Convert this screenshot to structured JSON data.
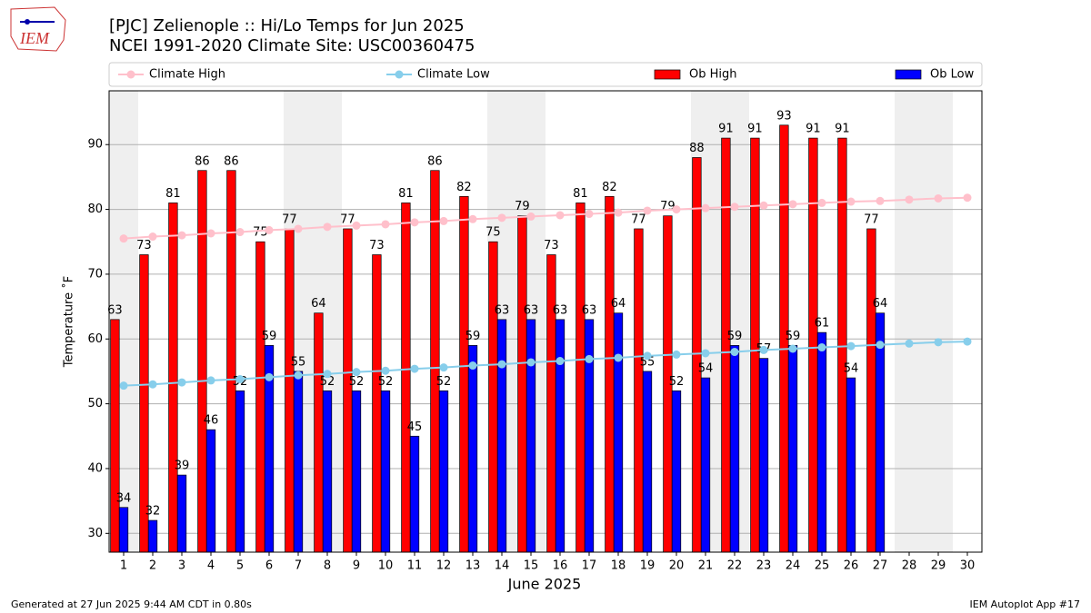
{
  "chart_data": {
    "type": "bar",
    "title": "[PJC] Zelienople :: Hi/Lo Temps for Jun 2025",
    "subtitle": "NCEI 1991-2020 Climate Site: USC00360475",
    "logo_text": "IEM",
    "x_label": "June 2025",
    "y_label": "Temperature ˚F",
    "footer_left": "Generated at 27 Jun 2025 9:44 AM CDT in 0.80s",
    "footer_right": "IEM Autoplot App #17",
    "x": [
      1,
      2,
      3,
      4,
      5,
      6,
      7,
      8,
      9,
      10,
      11,
      12,
      13,
      14,
      15,
      16,
      17,
      18,
      19,
      20,
      21,
      22,
      23,
      24,
      25,
      26,
      27,
      28,
      29,
      30
    ],
    "xlim": [
      0.5,
      30.5
    ],
    "xticks": [
      1,
      2,
      3,
      4,
      5,
      6,
      7,
      8,
      9,
      10,
      11,
      12,
      13,
      14,
      15,
      16,
      17,
      18,
      19,
      20,
      21,
      22,
      23,
      24,
      25,
      26,
      27,
      28,
      29,
      30
    ],
    "ylim": [
      27.1,
      98.3
    ],
    "yticks": [
      30,
      40,
      50,
      60,
      70,
      80,
      90
    ],
    "grid": true,
    "shaded_x": [
      1,
      7,
      8,
      14,
      15,
      21,
      22,
      28,
      29
    ],
    "series": [
      {
        "name": "Climate High",
        "kind": "line",
        "color": "#ffc0cb",
        "values": [
          75.5,
          75.8,
          76.0,
          76.3,
          76.5,
          76.8,
          77.0,
          77.3,
          77.5,
          77.7,
          78.0,
          78.2,
          78.5,
          78.7,
          78.9,
          79.1,
          79.3,
          79.5,
          79.8,
          80.0,
          80.2,
          80.4,
          80.6,
          80.8,
          81.0,
          81.2,
          81.3,
          81.5,
          81.7,
          81.8
        ]
      },
      {
        "name": "Climate Low",
        "kind": "line",
        "color": "#87ceeb",
        "values": [
          52.8,
          53.0,
          53.3,
          53.6,
          53.8,
          54.1,
          54.4,
          54.6,
          54.9,
          55.1,
          55.4,
          55.6,
          55.9,
          56.1,
          56.4,
          56.6,
          56.9,
          57.1,
          57.4,
          57.6,
          57.8,
          58.0,
          58.3,
          58.5,
          58.7,
          58.9,
          59.1,
          59.3,
          59.5,
          59.6
        ]
      },
      {
        "name": "Ob High",
        "kind": "bar",
        "color": "#ff0000",
        "values": [
          63,
          73,
          81,
          86,
          86,
          75,
          77,
          64,
          77,
          73,
          81,
          86,
          82,
          75,
          79,
          73,
          81,
          82,
          77,
          79,
          88,
          91,
          91,
          93,
          91,
          91,
          77,
          null,
          null,
          null
        ]
      },
      {
        "name": "Ob Low",
        "kind": "bar",
        "color": "#0000ff",
        "values": [
          34,
          32,
          39,
          46,
          52,
          59,
          55,
          52,
          52,
          52,
          45,
          52,
          59,
          63,
          63,
          63,
          63,
          64,
          55,
          52,
          54,
          59,
          57,
          59,
          61,
          54,
          64,
          null,
          null,
          null
        ]
      }
    ]
  }
}
